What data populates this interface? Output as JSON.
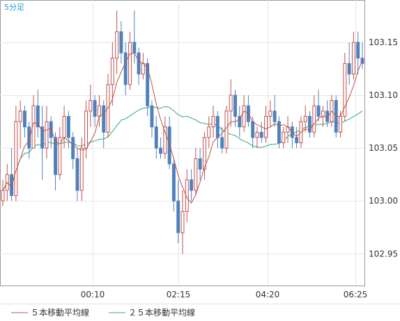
{
  "chart_data": {
    "type": "candlestick",
    "timeframe_label": "5分足",
    "ylim": [
      102.92,
      103.19
    ],
    "y_ticks": [
      "103.15",
      "103.10",
      "103.05",
      "103.00",
      "102.95"
    ],
    "x_ticks": [
      "00:10",
      "02:15",
      "04:20",
      "06:25"
    ],
    "grid": true,
    "legend_placement": "bottom-left",
    "colors": {
      "up_body": "#ffffff",
      "up_outline": "#c0504d",
      "down_body": "#4f81bd",
      "down_outline": "#4f81bd",
      "ma5": "#c0504d",
      "ma25": "#2ea87f",
      "grid": "#e6e6e6",
      "frame": "#999999"
    },
    "series": [
      {
        "name": "５本移動平均線",
        "color": "#c0504d"
      },
      {
        "name": "２５本移動平均線",
        "color": "#2ea87f"
      }
    ],
    "candles": [
      [
        103.0,
        103.02,
        102.995,
        103.01
      ],
      [
        103.01,
        103.035,
        103.0,
        103.025
      ],
      [
        103.025,
        103.05,
        103.0,
        103.005
      ],
      [
        103.005,
        103.09,
        103.0,
        103.075
      ],
      [
        103.075,
        103.095,
        103.05,
        103.085
      ],
      [
        103.085,
        103.09,
        103.06,
        103.07
      ],
      [
        103.07,
        103.075,
        103.04,
        103.05
      ],
      [
        103.05,
        103.1,
        103.05,
        103.09
      ],
      [
        103.09,
        103.105,
        103.06,
        103.07
      ],
      [
        103.07,
        103.09,
        103.02,
        103.05
      ],
      [
        103.05,
        103.09,
        103.04,
        103.075
      ],
      [
        103.075,
        103.08,
        103.05,
        103.06
      ],
      [
        103.06,
        103.065,
        103.01,
        103.025
      ],
      [
        103.025,
        103.07,
        103.02,
        103.06
      ],
      [
        103.06,
        103.09,
        103.05,
        103.08
      ],
      [
        103.08,
        103.085,
        103.05,
        103.06
      ],
      [
        103.06,
        103.065,
        103.03,
        103.04
      ],
      [
        103.04,
        103.05,
        103.0,
        103.01
      ],
      [
        103.01,
        103.06,
        103.0,
        103.05
      ],
      [
        103.05,
        103.095,
        103.04,
        103.085
      ],
      [
        103.085,
        103.11,
        103.07,
        103.095
      ],
      [
        103.095,
        103.1,
        103.07,
        103.08
      ],
      [
        103.08,
        103.1,
        103.07,
        103.09
      ],
      [
        103.09,
        103.095,
        103.05,
        103.065
      ],
      [
        103.065,
        103.12,
        103.06,
        103.11
      ],
      [
        103.11,
        103.15,
        103.09,
        103.135
      ],
      [
        103.135,
        103.18,
        103.12,
        103.16
      ],
      [
        103.16,
        103.17,
        103.13,
        103.14
      ],
      [
        103.14,
        103.15,
        103.1,
        103.11
      ],
      [
        103.11,
        103.16,
        103.105,
        103.15
      ],
      [
        103.15,
        103.18,
        103.13,
        103.14
      ],
      [
        103.14,
        103.145,
        103.11,
        103.12
      ],
      [
        103.12,
        103.14,
        103.115,
        103.13
      ],
      [
        103.13,
        103.135,
        103.08,
        103.09
      ],
      [
        103.09,
        103.095,
        103.06,
        103.07
      ],
      [
        103.07,
        103.08,
        103.04,
        103.05
      ],
      [
        103.05,
        103.06,
        103.04,
        103.045
      ],
      [
        103.045,
        103.08,
        103.04,
        103.07
      ],
      [
        103.07,
        103.08,
        103.03,
        103.035
      ],
      [
        103.035,
        103.04,
        102.99,
        103.0
      ],
      [
        103.0,
        103.02,
        102.96,
        102.97
      ],
      [
        102.97,
        103.01,
        102.95,
        102.99
      ],
      [
        102.99,
        103.03,
        102.98,
        103.02
      ],
      [
        103.02,
        103.03,
        103.0,
        103.01
      ],
      [
        103.01,
        103.05,
        103.005,
        103.04
      ],
      [
        103.04,
        103.05,
        103.02,
        103.03
      ],
      [
        103.03,
        103.065,
        103.02,
        103.06
      ],
      [
        103.06,
        103.08,
        103.05,
        103.07
      ],
      [
        103.07,
        103.09,
        103.06,
        103.08
      ],
      [
        103.08,
        103.085,
        103.05,
        103.06
      ],
      [
        103.06,
        103.07,
        103.045,
        103.05
      ],
      [
        103.05,
        103.09,
        103.045,
        103.085
      ],
      [
        103.085,
        103.115,
        103.07,
        103.1
      ],
      [
        103.1,
        103.105,
        103.07,
        103.08
      ],
      [
        103.08,
        103.09,
        103.06,
        103.07
      ],
      [
        103.07,
        103.1,
        103.065,
        103.09
      ],
      [
        103.09,
        103.1,
        103.07,
        103.075
      ],
      [
        103.075,
        103.08,
        103.05,
        103.06
      ],
      [
        103.06,
        103.07,
        103.05,
        103.065
      ],
      [
        103.065,
        103.075,
        103.055,
        103.06
      ],
      [
        103.06,
        103.09,
        103.055,
        103.08
      ],
      [
        103.08,
        103.095,
        103.07,
        103.085
      ],
      [
        103.085,
        103.1,
        103.07,
        103.075
      ],
      [
        103.075,
        103.08,
        103.05,
        103.055
      ],
      [
        103.055,
        103.07,
        103.05,
        103.065
      ],
      [
        103.065,
        103.08,
        103.055,
        103.07
      ],
      [
        103.07,
        103.075,
        103.05,
        103.06
      ],
      [
        103.06,
        103.07,
        103.05,
        103.055
      ],
      [
        103.055,
        103.08,
        103.05,
        103.075
      ],
      [
        103.075,
        103.09,
        103.065,
        103.08
      ],
      [
        103.08,
        103.085,
        103.06,
        103.065
      ],
      [
        103.065,
        103.1,
        103.06,
        103.09
      ],
      [
        103.09,
        103.105,
        103.075,
        103.08
      ],
      [
        103.08,
        103.09,
        103.07,
        103.085
      ],
      [
        103.085,
        103.095,
        103.07,
        103.075
      ],
      [
        103.075,
        103.1,
        103.07,
        103.095
      ],
      [
        103.095,
        103.1,
        103.06,
        103.065
      ],
      [
        103.065,
        103.085,
        103.06,
        103.08
      ],
      [
        103.08,
        103.14,
        103.075,
        103.13
      ],
      [
        103.13,
        103.15,
        103.11,
        103.12
      ],
      [
        103.12,
        103.16,
        103.115,
        103.15
      ],
      [
        103.15,
        103.16,
        103.12,
        103.135
      ],
      [
        103.135,
        103.15,
        103.125,
        103.13
      ]
    ]
  },
  "legend": {
    "ma5_label": "５本移動平均線",
    "ma25_label": "２５本移動平均線"
  }
}
